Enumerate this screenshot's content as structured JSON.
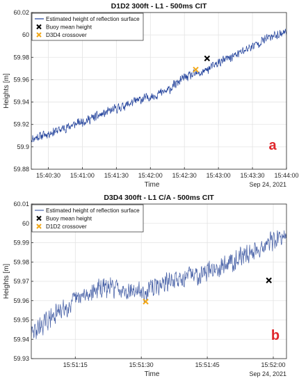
{
  "chart_data": [
    {
      "type": "line",
      "title": "D1D2 300ft - L1 - 500ms CIT",
      "xlabel": "Time",
      "ylabel": "Heights [m]",
      "date_label": "Sep 24, 2021",
      "panel_label": "a",
      "xlim": [
        "15:40:15",
        "15:44:00"
      ],
      "ylim": [
        59.88,
        60.02
      ],
      "x_ticks": [
        "15:40:30",
        "15:41:00",
        "15:41:30",
        "15:42:00",
        "15:42:30",
        "15:43:00",
        "15:43:30",
        "15:44:00"
      ],
      "y_ticks": [
        "59.88",
        "59.9",
        "59.92",
        "59.94",
        "59.96",
        "59.98",
        "60",
        "60.02"
      ],
      "grid": true,
      "legend_position": "top-left",
      "series": [
        {
          "name": "Estimated height of reflection surface",
          "kind": "line",
          "color": "#1f3f9a",
          "x": [
            "15:40:15",
            "15:40:45",
            "15:41:15",
            "15:41:45",
            "15:42:15",
            "15:42:30",
            "15:42:45",
            "15:43:00",
            "15:43:15",
            "15:43:30",
            "15:43:45",
            "15:44:00"
          ],
          "y": [
            59.907,
            59.917,
            59.928,
            59.94,
            59.95,
            59.962,
            59.966,
            59.975,
            59.982,
            59.99,
            59.998,
            60.003
          ],
          "noise": 0.005
        },
        {
          "name": "Buoy mean height",
          "kind": "marker",
          "marker": "x",
          "color": "#000000",
          "x": [
            "15:42:50"
          ],
          "y": [
            59.979
          ]
        },
        {
          "name": "D3D4 crossover",
          "kind": "marker",
          "marker": "x",
          "color": "#f2a818",
          "x": [
            "15:42:40"
          ],
          "y": [
            59.969
          ]
        }
      ]
    },
    {
      "type": "line",
      "title": "D3D4 300ft - L1 C/A - 500ms CIT",
      "xlabel": "Time",
      "ylabel": "Heights [m]",
      "date_label": "Sep 24, 2021",
      "panel_label": "b",
      "xlim": [
        "15:51:05",
        "15:52:03"
      ],
      "ylim": [
        59.93,
        60.01
      ],
      "x_ticks": [
        "15:51:15",
        "15:51:30",
        "15:51:45",
        "15:52:00"
      ],
      "y_ticks": [
        "59.93",
        "59.94",
        "59.95",
        "59.96",
        "59.97",
        "59.98",
        "59.99",
        "60",
        "60.01"
      ],
      "grid": true,
      "legend_position": "top-left",
      "series": [
        {
          "name": "Estimated height of reflection surface",
          "kind": "line",
          "color": "#4a63a8",
          "x": [
            "15:51:05",
            "15:51:10",
            "15:51:15",
            "15:51:20",
            "15:51:25",
            "15:51:30",
            "15:51:35",
            "15:51:40",
            "15:51:45",
            "15:51:50",
            "15:51:55",
            "15:52:00",
            "15:52:03"
          ],
          "y": [
            59.943,
            59.952,
            59.96,
            59.966,
            59.967,
            59.964,
            59.969,
            59.972,
            59.975,
            59.98,
            59.985,
            59.991,
            59.993
          ],
          "noise": 0.006
        },
        {
          "name": "Buoy mean height",
          "kind": "marker",
          "marker": "x",
          "color": "#000000",
          "x": [
            "15:51:59"
          ],
          "y": [
            59.9705
          ]
        },
        {
          "name": "D1D2 crossover",
          "kind": "marker",
          "marker": "x",
          "color": "#f2a818",
          "x": [
            "15:51:31"
          ],
          "y": [
            59.9595
          ]
        }
      ]
    }
  ]
}
